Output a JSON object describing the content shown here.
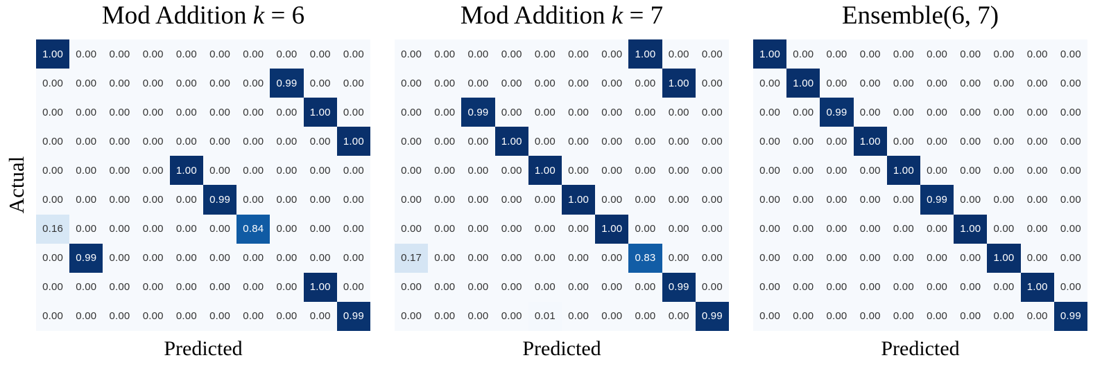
{
  "figure": {
    "ylabel": "Actual",
    "background": "#ffffff",
    "cell_text_dark": "#333333",
    "cell_text_light": "#ffffff",
    "text_color_value_threshold": 0.5,
    "colormap_name": "Blues",
    "colormap_anchors": [
      [
        0.0,
        "#f6f9fd"
      ],
      [
        0.125,
        "#deebf7"
      ],
      [
        0.25,
        "#c6dbef"
      ],
      [
        0.375,
        "#9ecae1"
      ],
      [
        0.5,
        "#6baed6"
      ],
      [
        0.625,
        "#4292c6"
      ],
      [
        0.75,
        "#2171b5"
      ],
      [
        0.875,
        "#0a529d"
      ],
      [
        1.0,
        "#09306b"
      ]
    ]
  },
  "chart_data": [
    {
      "type": "heatmap",
      "title": "Mod Addition k = 6",
      "title_parts": [
        {
          "text": "Mod Addition ",
          "italic": false
        },
        {
          "text": "k",
          "italic": true
        },
        {
          "text": " = 6",
          "italic": false
        }
      ],
      "xlabel": "Predicted",
      "ylabel": "Actual",
      "rows": 10,
      "cols": 10,
      "value_range": [
        0,
        1
      ],
      "values": [
        [
          "1.00",
          "0.00",
          "0.00",
          "0.00",
          "0.00",
          "0.00",
          "0.00",
          "0.00",
          "0.00",
          "0.00"
        ],
        [
          "0.00",
          "0.00",
          "0.00",
          "0.00",
          "0.00",
          "0.00",
          "0.00",
          "0.99",
          "0.00",
          "0.00"
        ],
        [
          "0.00",
          "0.00",
          "0.00",
          "0.00",
          "0.00",
          "0.00",
          "0.00",
          "0.00",
          "1.00",
          "0.00"
        ],
        [
          "0.00",
          "0.00",
          "0.00",
          "0.00",
          "0.00",
          "0.00",
          "0.00",
          "0.00",
          "0.00",
          "1.00"
        ],
        [
          "0.00",
          "0.00",
          "0.00",
          "0.00",
          "1.00",
          "0.00",
          "0.00",
          "0.00",
          "0.00",
          "0.00"
        ],
        [
          "0.00",
          "0.00",
          "0.00",
          "0.00",
          "0.00",
          "0.99",
          "0.00",
          "0.00",
          "0.00",
          "0.00"
        ],
        [
          "0.16",
          "0.00",
          "0.00",
          "0.00",
          "0.00",
          "0.00",
          "0.84",
          "0.00",
          "0.00",
          "0.00"
        ],
        [
          "0.00",
          "0.99",
          "0.00",
          "0.00",
          "0.00",
          "0.00",
          "0.00",
          "0.00",
          "0.00",
          "0.00"
        ],
        [
          "0.00",
          "0.00",
          "0.00",
          "0.00",
          "0.00",
          "0.00",
          "0.00",
          "0.00",
          "1.00",
          "0.00"
        ],
        [
          "0.00",
          "0.00",
          "0.00",
          "0.00",
          "0.00",
          "0.00",
          "0.00",
          "0.00",
          "0.00",
          "0.99"
        ]
      ]
    },
    {
      "type": "heatmap",
      "title": "Mod Addition k = 7",
      "title_parts": [
        {
          "text": "Mod Addition ",
          "italic": false
        },
        {
          "text": "k",
          "italic": true
        },
        {
          "text": " = 7",
          "italic": false
        }
      ],
      "xlabel": "Predicted",
      "ylabel": "Actual",
      "rows": 10,
      "cols": 10,
      "value_range": [
        0,
        1
      ],
      "values": [
        [
          "0.00",
          "0.00",
          "0.00",
          "0.00",
          "0.00",
          "0.00",
          "0.00",
          "1.00",
          "0.00",
          "0.00"
        ],
        [
          "0.00",
          "0.00",
          "0.00",
          "0.00",
          "0.00",
          "0.00",
          "0.00",
          "0.00",
          "1.00",
          "0.00"
        ],
        [
          "0.00",
          "0.00",
          "0.99",
          "0.00",
          "0.00",
          "0.00",
          "0.00",
          "0.00",
          "0.00",
          "0.00"
        ],
        [
          "0.00",
          "0.00",
          "0.00",
          "1.00",
          "0.00",
          "0.00",
          "0.00",
          "0.00",
          "0.00",
          "0.00"
        ],
        [
          "0.00",
          "0.00",
          "0.00",
          "0.00",
          "1.00",
          "0.00",
          "0.00",
          "0.00",
          "0.00",
          "0.00"
        ],
        [
          "0.00",
          "0.00",
          "0.00",
          "0.00",
          "0.00",
          "1.00",
          "0.00",
          "0.00",
          "0.00",
          "0.00"
        ],
        [
          "0.00",
          "0.00",
          "0.00",
          "0.00",
          "0.00",
          "0.00",
          "1.00",
          "0.00",
          "0.00",
          "0.00"
        ],
        [
          "0.17",
          "0.00",
          "0.00",
          "0.00",
          "0.00",
          "0.00",
          "0.00",
          "0.83",
          "0.00",
          "0.00"
        ],
        [
          "0.00",
          "0.00",
          "0.00",
          "0.00",
          "0.00",
          "0.00",
          "0.00",
          "0.00",
          "0.99",
          "0.00"
        ],
        [
          "0.00",
          "0.00",
          "0.00",
          "0.00",
          "0.01",
          "0.00",
          "0.00",
          "0.00",
          "0.00",
          "0.99"
        ]
      ]
    },
    {
      "type": "heatmap",
      "title": "Ensemble(6, 7)",
      "title_parts": [
        {
          "text": "Ensemble(6, 7)",
          "italic": false
        }
      ],
      "xlabel": "Predicted",
      "ylabel": "Actual",
      "rows": 10,
      "cols": 10,
      "value_range": [
        0,
        1
      ],
      "values": [
        [
          "1.00",
          "0.00",
          "0.00",
          "0.00",
          "0.00",
          "0.00",
          "0.00",
          "0.00",
          "0.00",
          "0.00"
        ],
        [
          "0.00",
          "1.00",
          "0.00",
          "0.00",
          "0.00",
          "0.00",
          "0.00",
          "0.00",
          "0.00",
          "0.00"
        ],
        [
          "0.00",
          "0.00",
          "0.99",
          "0.00",
          "0.00",
          "0.00",
          "0.00",
          "0.00",
          "0.00",
          "0.00"
        ],
        [
          "0.00",
          "0.00",
          "0.00",
          "1.00",
          "0.00",
          "0.00",
          "0.00",
          "0.00",
          "0.00",
          "0.00"
        ],
        [
          "0.00",
          "0.00",
          "0.00",
          "0.00",
          "1.00",
          "0.00",
          "0.00",
          "0.00",
          "0.00",
          "0.00"
        ],
        [
          "0.00",
          "0.00",
          "0.00",
          "0.00",
          "0.00",
          "0.99",
          "0.00",
          "0.00",
          "0.00",
          "0.00"
        ],
        [
          "0.00",
          "0.00",
          "0.00",
          "0.00",
          "0.00",
          "0.00",
          "1.00",
          "0.00",
          "0.00",
          "0.00"
        ],
        [
          "0.00",
          "0.00",
          "0.00",
          "0.00",
          "0.00",
          "0.00",
          "0.00",
          "1.00",
          "0.00",
          "0.00"
        ],
        [
          "0.00",
          "0.00",
          "0.00",
          "0.00",
          "0.00",
          "0.00",
          "0.00",
          "0.00",
          "1.00",
          "0.00"
        ],
        [
          "0.00",
          "0.00",
          "0.00",
          "0.00",
          "0.00",
          "0.00",
          "0.00",
          "0.00",
          "0.00",
          "0.99"
        ]
      ]
    }
  ]
}
